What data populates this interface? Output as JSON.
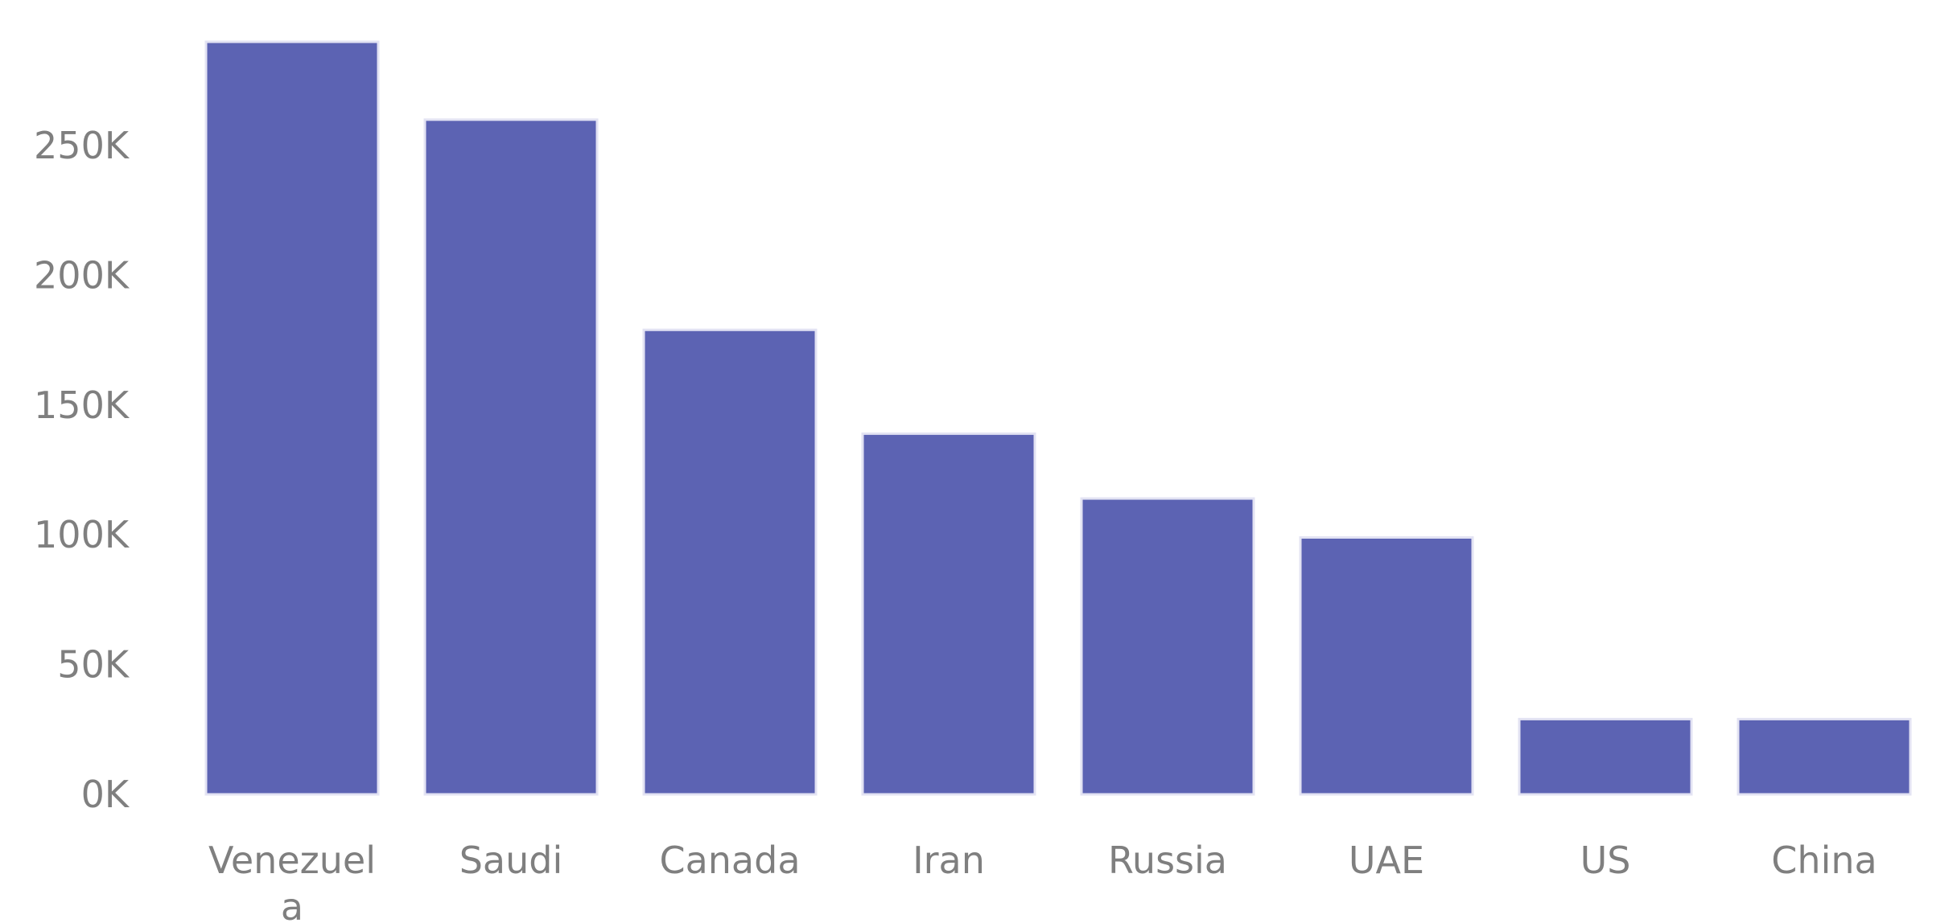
{
  "chart_data": {
    "type": "bar",
    "title": "",
    "xlabel": "",
    "ylabel": "",
    "categories": [
      "Venezuela",
      "Saudi",
      "Canada",
      "Iran",
      "Russia",
      "UAE",
      "US",
      "China"
    ],
    "category_labels": [
      [
        "Venezuel",
        "a"
      ],
      [
        "Saudi"
      ],
      [
        "Canada"
      ],
      [
        "Iran"
      ],
      [
        "Russia"
      ],
      [
        "UAE"
      ],
      [
        "US"
      ],
      [
        "China"
      ]
    ],
    "values": [
      290000,
      260000,
      179000,
      139000,
      114000,
      99000,
      29000,
      29000
    ],
    "ylim": [
      0,
      290000
    ],
    "yticks": [
      0,
      50000,
      100000,
      150000,
      200000,
      250000
    ],
    "ytick_labels": [
      "0K",
      "50K",
      "100K",
      "150K",
      "200K",
      "250K"
    ],
    "bar_color": "#5c63b3",
    "grid": false,
    "legend": "none"
  }
}
